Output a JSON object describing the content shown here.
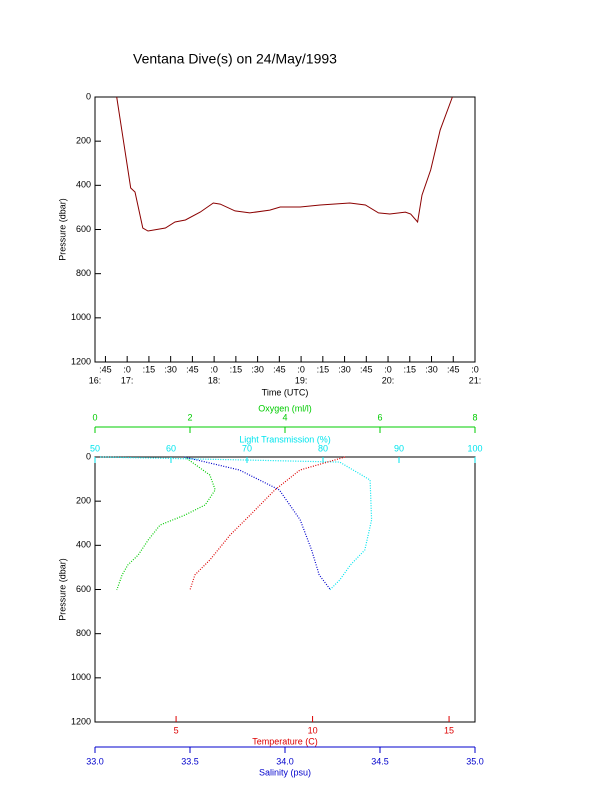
{
  "title": "Ventana Dive(s) on 24/May/1993",
  "chart_data": [
    {
      "type": "line",
      "x_label": "Time (UTC)",
      "y_label": "Pressure (dbar)",
      "xlim": [
        16.63,
        21.0
      ],
      "xticks": [
        {
          "value": 16.75,
          "label": ":45"
        },
        {
          "value": 17.0,
          "label": ":0"
        },
        {
          "value": 17.25,
          "label": ":15"
        },
        {
          "value": 17.5,
          "label": ":30"
        },
        {
          "value": 17.75,
          "label": ":45"
        },
        {
          "value": 18.0,
          "label": ":0"
        },
        {
          "value": 18.25,
          "label": ":15"
        },
        {
          "value": 18.5,
          "label": ":30"
        },
        {
          "value": 18.75,
          "label": ":45"
        },
        {
          "value": 19.0,
          "label": ":0"
        },
        {
          "value": 19.25,
          "label": ":15"
        },
        {
          "value": 19.5,
          "label": ":30"
        },
        {
          "value": 19.75,
          "label": ":45"
        },
        {
          "value": 20.0,
          "label": ":0"
        },
        {
          "value": 20.25,
          "label": ":15"
        },
        {
          "value": 20.5,
          "label": ":30"
        },
        {
          "value": 20.75,
          "label": ":45"
        },
        {
          "value": 21.0,
          "label": ":0"
        }
      ],
      "hour_labels": [
        {
          "value": 16.63,
          "label": "16:"
        },
        {
          "value": 17.0,
          "label": "17:"
        },
        {
          "value": 18.0,
          "label": "18:"
        },
        {
          "value": 19.0,
          "label": "19:"
        },
        {
          "value": 20.0,
          "label": "20:"
        },
        {
          "value": 21.0,
          "label": "21:"
        }
      ],
      "ylim": [
        0,
        1200
      ],
      "y_inverted": true,
      "yticks": [
        0,
        200,
        400,
        600,
        800,
        1000,
        1200
      ],
      "x": [
        16.88,
        17.04,
        17.09,
        17.18,
        17.24,
        17.44,
        17.55,
        17.67,
        17.84,
        17.99,
        18.07,
        18.24,
        18.41,
        18.64,
        18.76,
        18.99,
        19.22,
        19.56,
        19.74,
        19.89,
        20.02,
        20.2,
        20.26,
        20.34,
        20.39,
        20.49,
        20.6,
        20.74
      ],
      "series": [
        {
          "color": "#8b0000",
          "values": [
            0,
            412,
            430,
            593,
            607,
            593,
            566,
            557,
            521,
            480,
            485,
            516,
            525,
            512,
            498,
            498,
            489,
            480,
            489,
            525,
            530,
            521,
            530,
            566,
            444,
            330,
            149,
            0
          ]
        }
      ]
    },
    {
      "type": "profile",
      "y_label": "Pressure (dbar)",
      "ylim": [
        0,
        1200
      ],
      "y_inverted": true,
      "yticks": [
        0,
        200,
        400,
        600,
        800,
        1000,
        1200
      ],
      "axes": [
        {
          "label": "Oxygen (ml/l)",
          "color": "#00cc00",
          "position": "top-outer",
          "lim": [
            0,
            8
          ],
          "ticks": [
            0,
            2,
            4,
            6,
            8
          ],
          "profile": {
            "values": [
              1.89,
              2.42,
              2.53,
              2.32,
              1.89,
              1.37,
              1.12,
              0.91,
              0.69,
              0.57,
              0.46
            ],
            "pressure": [
              0,
              82,
              149,
              217,
              263,
              308,
              376,
              444,
              489,
              534,
              602
            ]
          }
        },
        {
          "label": "Light Transmission (%)",
          "color": "#00e5ee",
          "position": "top",
          "lim": [
            50,
            100
          ],
          "ticks": [
            50,
            60,
            70,
            80,
            90,
            100
          ],
          "profile": {
            "values": [
              50.7,
              70.4,
              82.2,
              86.2,
              86.4,
              85.5,
              83.6,
              82.2,
              80.9
            ],
            "pressure": [
              0,
              14,
              23,
              104,
              285,
              421,
              489,
              557,
              602
            ]
          }
        },
        {
          "label": "Temperature (C)",
          "color": "#dd0000",
          "position": "bottom",
          "lim": [
            2.03,
            15.95
          ],
          "ticks": [
            5,
            10,
            15
          ],
          "profile": {
            "values": [
              11.19,
              9.54,
              8.62,
              7.71,
              6.98,
              6.24,
              5.69,
              5.51
            ],
            "pressure": [
              0,
              59,
              149,
              263,
              353,
              466,
              534,
              602
            ]
          }
        },
        {
          "label": "Salinity (psu)",
          "color": "#0000cc",
          "position": "bottom-outer",
          "lim": [
            33.0,
            35.0
          ],
          "ticks": [
            {
              "value": 33.0,
              "label": "33.0"
            },
            33.5,
            {
              "value": 34.0,
              "label": "34.0"
            },
            34.5,
            {
              "value": 35.0,
              "label": "35.0"
            }
          ],
          "profile": {
            "values": [
              33.47,
              33.76,
              33.97,
              34.08,
              34.14,
              34.18,
              34.24
            ],
            "pressure": [
              0,
              59,
              149,
              285,
              421,
              534,
              602
            ]
          }
        }
      ]
    }
  ]
}
